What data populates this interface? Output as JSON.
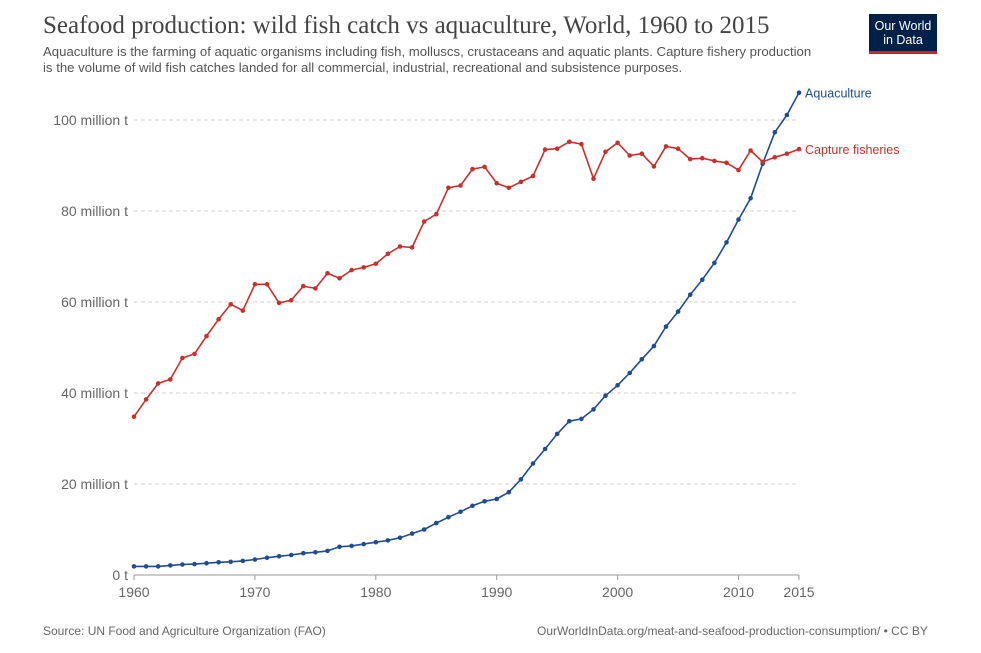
{
  "header": {
    "title": "Seafood production: wild fish catch vs aquaculture, World, 1960 to 2015",
    "subtitle": "Aquaculture is the farming of aquatic organisms including fish, molluscs, crustaceans and aquatic plants. Capture fishery production is the volume of wild fish catches landed for all commercial, industrial, recreational and subsistence purposes."
  },
  "logo": {
    "line1": "Our World",
    "line2": "in Data",
    "bg_color": "#002147",
    "accent_color": "#ce261e"
  },
  "footer": {
    "source": "Source: UN Food and Agriculture Organization (FAO)",
    "link": "OurWorldInData.org/meat-and-seafood-production-consumption/ • CC BY"
  },
  "chart_data": {
    "type": "line",
    "title": "Seafood production: wild fish catch vs aquaculture, World, 1960 to 2015",
    "xlabel": "",
    "ylabel": "",
    "xlim": [
      1960,
      2015
    ],
    "ylim": [
      0,
      100
    ],
    "grid": true,
    "legend": "inline-end-labels",
    "x_ticks": [
      1960,
      1970,
      1980,
      1990,
      2000,
      2010,
      2015
    ],
    "y_ticks": [
      {
        "value": 0,
        "label": "0 t"
      },
      {
        "value": 20,
        "label": "20 million t"
      },
      {
        "value": 40,
        "label": "40 million t"
      },
      {
        "value": 60,
        "label": "60 million t"
      },
      {
        "value": 80,
        "label": "80 million t"
      },
      {
        "value": 100,
        "label": "100 million t"
      }
    ],
    "x": [
      1960,
      1961,
      1962,
      1963,
      1964,
      1965,
      1966,
      1967,
      1968,
      1969,
      1970,
      1971,
      1972,
      1973,
      1974,
      1975,
      1976,
      1977,
      1978,
      1979,
      1980,
      1981,
      1982,
      1983,
      1984,
      1985,
      1986,
      1987,
      1988,
      1989,
      1990,
      1991,
      1992,
      1993,
      1994,
      1995,
      1996,
      1997,
      1998,
      1999,
      2000,
      2001,
      2002,
      2003,
      2004,
      2005,
      2006,
      2007,
      2008,
      2009,
      2010,
      2011,
      2012,
      2013,
      2014,
      2015
    ],
    "series": [
      {
        "name": "Aquaculture",
        "color": "#1f4d8f",
        "values": [
          1.9,
          1.9,
          1.9,
          2.1,
          2.3,
          2.4,
          2.6,
          2.8,
          2.9,
          3.1,
          3.4,
          3.8,
          4.1,
          4.4,
          4.8,
          5.0,
          5.3,
          6.2,
          6.4,
          6.8,
          7.2,
          7.6,
          8.2,
          9.1,
          10.0,
          11.4,
          12.7,
          13.9,
          15.2,
          16.2,
          16.7,
          18.2,
          21.0,
          24.5,
          27.7,
          31.0,
          33.8,
          34.3,
          36.4,
          39.4,
          41.7,
          44.4,
          47.4,
          50.3,
          54.6,
          57.9,
          61.6,
          64.9,
          68.6,
          73.1,
          78.1,
          82.8,
          90.4,
          97.3,
          101.1,
          106.0
        ]
      },
      {
        "name": "Capture fisheries",
        "color": "#c8302c",
        "values": [
          34.8,
          38.6,
          42.1,
          43.0,
          47.7,
          48.6,
          52.5,
          56.2,
          59.5,
          58.1,
          63.9,
          63.9,
          59.8,
          60.4,
          63.5,
          63.0,
          66.3,
          65.2,
          67.0,
          67.6,
          68.4,
          70.6,
          72.2,
          72.0,
          77.7,
          79.3,
          85.1,
          85.6,
          89.2,
          89.7,
          86.1,
          85.1,
          86.4,
          87.7,
          93.5,
          93.7,
          95.2,
          94.7,
          87.1,
          93.0,
          95.0,
          92.2,
          92.6,
          89.8,
          94.2,
          93.7,
          91.4,
          91.6,
          91.0,
          90.6,
          89.0,
          93.3,
          90.8,
          91.8,
          92.6,
          93.6
        ]
      }
    ]
  }
}
